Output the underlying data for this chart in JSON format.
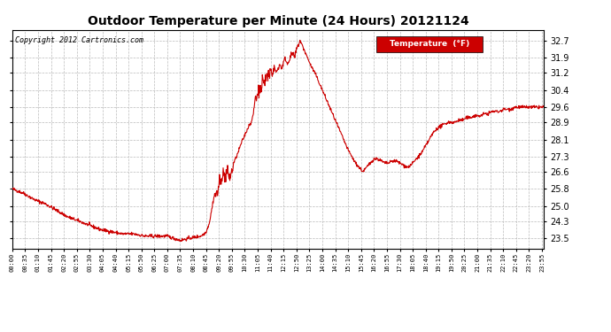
{
  "title": "Outdoor Temperature per Minute (24 Hours) 20121124",
  "copyright": "Copyright 2012 Cartronics.com",
  "legend_label": "Temperature  (°F)",
  "line_color": "#cc0000",
  "legend_bg": "#cc0000",
  "legend_text_color": "#ffffff",
  "background_color": "#ffffff",
  "grid_color": "#bbbbbb",
  "yticks": [
    23.5,
    24.3,
    25.0,
    25.8,
    26.6,
    27.3,
    28.1,
    28.9,
    29.6,
    30.4,
    31.2,
    31.9,
    32.7
  ],
  "ylim": [
    23.0,
    33.2
  ],
  "xtick_labels": [
    "00:00",
    "00:35",
    "01:10",
    "01:45",
    "02:20",
    "02:55",
    "03:30",
    "04:05",
    "04:40",
    "05:15",
    "05:50",
    "06:25",
    "07:00",
    "07:35",
    "08:10",
    "08:45",
    "09:20",
    "09:55",
    "10:30",
    "11:05",
    "11:40",
    "12:15",
    "12:50",
    "13:25",
    "14:00",
    "14:35",
    "15:10",
    "15:45",
    "16:20",
    "16:55",
    "17:30",
    "18:05",
    "18:40",
    "19:15",
    "19:50",
    "20:25",
    "21:00",
    "21:35",
    "22:10",
    "22:45",
    "23:20",
    "23:55"
  ],
  "figsize": [
    6.9,
    3.75
  ],
  "dpi": 100
}
